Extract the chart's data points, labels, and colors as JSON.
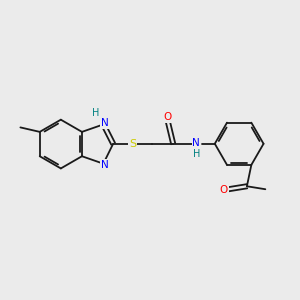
{
  "background_color": "#ebebeb",
  "bond_color": "#1a1a1a",
  "atom_colors": {
    "N": "#0000ff",
    "O": "#ff0000",
    "S": "#cccc00",
    "H": "#008080",
    "C": "#1a1a1a"
  },
  "figsize": [
    3.0,
    3.0
  ],
  "dpi": 100,
  "lw": 1.3
}
